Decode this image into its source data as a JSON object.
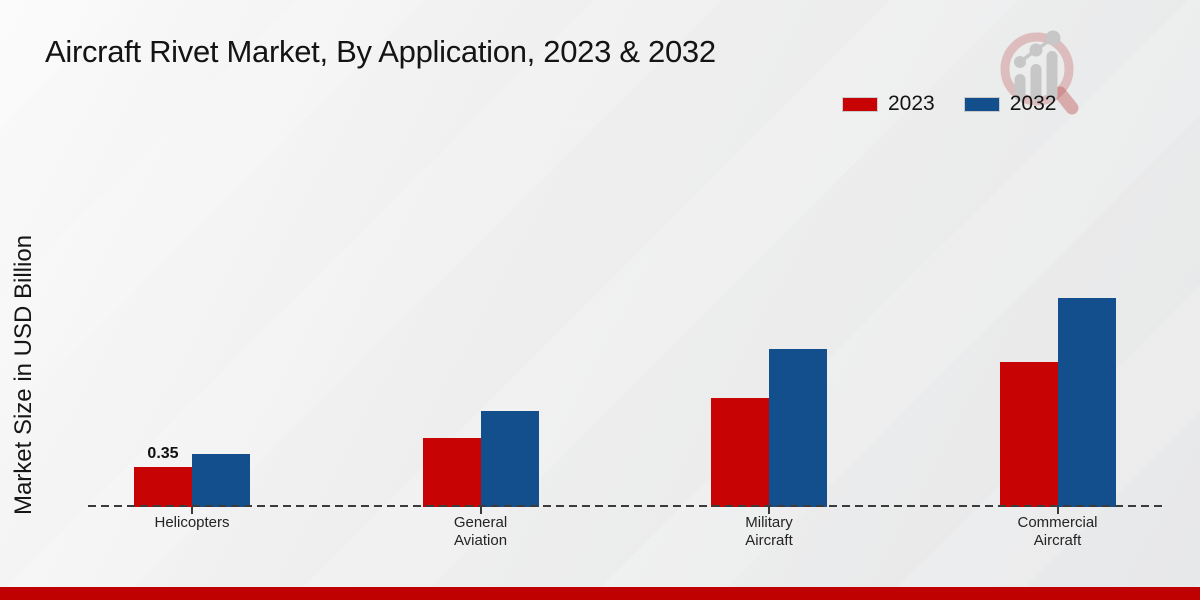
{
  "chart_data": {
    "type": "bar",
    "title": "Aircraft Rivet Market, By Application, 2023 & 2032",
    "ylabel": "Market Size in USD Billion",
    "categories": [
      "Helicopters",
      "General Aviation",
      "Military Aircraft",
      "Commercial Aircraft"
    ],
    "category_label_lines": [
      [
        "Helicopters"
      ],
      [
        "General",
        "Aviation"
      ],
      [
        "Military",
        "Aircraft"
      ],
      [
        "Commercial",
        "Aircraft"
      ]
    ],
    "series": [
      {
        "name": "2023",
        "color": "#c80303",
        "values": [
          0.35,
          0.6,
          0.95,
          1.27
        ]
      },
      {
        "name": "2032",
        "color": "#124f8c",
        "values": [
          0.46,
          0.84,
          1.38,
          1.83
        ]
      }
    ],
    "bar_label": {
      "series_index": 0,
      "category_index": 0,
      "text": "0.35"
    },
    "legend_position": "top-right",
    "grid": false,
    "baseline_style": "dashed",
    "ylim": [
      0,
      2
    ]
  },
  "footer": {
    "accent_color": "#c00101"
  },
  "logo": {
    "name": "magnifier-growth-chart-logo",
    "ring_color": "rgba(190,80,80,0.30)",
    "bar_color": "#c7c7c7"
  }
}
